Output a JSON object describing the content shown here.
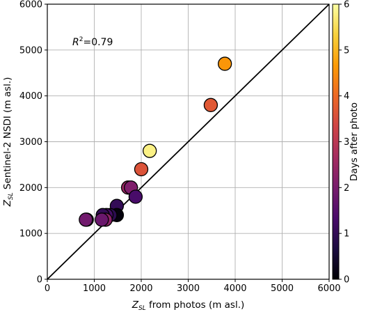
{
  "chart_data": {
    "type": "scatter",
    "xlabel": {
      "main": "Z",
      "sub": "SL",
      "rest": "  from photos (m asl.)"
    },
    "ylabel": {
      "main": "Z",
      "sub": "SL",
      "rest": "  Sentinel-2 NSDI (m asl.)"
    },
    "xlim": [
      0,
      6000
    ],
    "ylim": [
      0,
      6000
    ],
    "xticks": [
      0,
      1000,
      2000,
      3000,
      4000,
      5000,
      6000
    ],
    "yticks": [
      0,
      1000,
      2000,
      3000,
      4000,
      5000,
      6000
    ],
    "grid": true,
    "reference_line": "1:1",
    "annotation": {
      "main": "R",
      "sup": "2",
      "rest": "=0.79"
    },
    "colorbar": {
      "label": "Days after photo",
      "range": [
        0,
        6
      ],
      "ticks": [
        0,
        1,
        2,
        3,
        4,
        5,
        6
      ],
      "colormap": "inferno",
      "stops": [
        "#000004",
        "#1b0c41",
        "#4a0c6b",
        "#781c6d",
        "#a52c60",
        "#cf4446",
        "#ed6925",
        "#fb9b06",
        "#f7d13d",
        "#fcffa4"
      ]
    },
    "points": [
      {
        "x": 3780,
        "y": 4700,
        "c": 4.6
      },
      {
        "x": 3480,
        "y": 3800,
        "c": 3.7
      },
      {
        "x": 2180,
        "y": 2800,
        "c": 5.8
      },
      {
        "x": 2000,
        "y": 2400,
        "c": 3.6
      },
      {
        "x": 1720,
        "y": 2000,
        "c": 2.5
      },
      {
        "x": 1780,
        "y": 2000,
        "c": 2.1
      },
      {
        "x": 1880,
        "y": 1800,
        "c": 1.3
      },
      {
        "x": 1480,
        "y": 1600,
        "c": 1.0
      },
      {
        "x": 1480,
        "y": 1400,
        "c": 0.1
      },
      {
        "x": 1340,
        "y": 1400,
        "c": 0.9
      },
      {
        "x": 1260,
        "y": 1400,
        "c": 1.2
      },
      {
        "x": 1180,
        "y": 1400,
        "c": 1.0
      },
      {
        "x": 1240,
        "y": 1300,
        "c": 2.3
      },
      {
        "x": 1160,
        "y": 1300,
        "c": 1.8
      },
      {
        "x": 840,
        "y": 1300,
        "c": 1.6
      },
      {
        "x": 820,
        "y": 1300,
        "c": 1.9
      }
    ]
  }
}
